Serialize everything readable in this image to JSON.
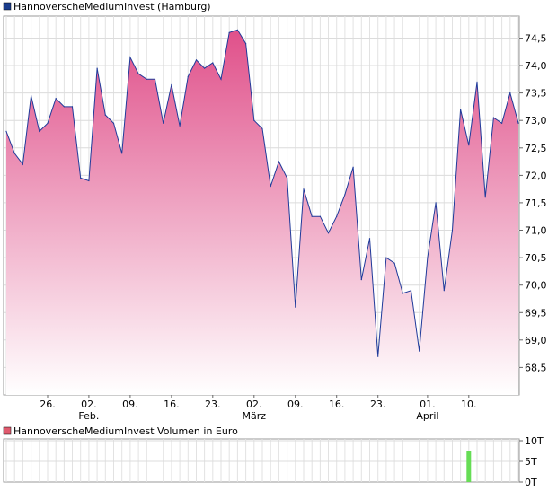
{
  "chart_data": [
    {
      "type": "area",
      "legend": "HannoverscheMediumInvest (Hamburg)",
      "legend_color": "#1a3c8c",
      "line_color": "#1f3a9a",
      "fill_top_color": "#e0508a",
      "fill_bottom_color": "#ffffff",
      "ylim": [
        68.0,
        74.9
      ],
      "y_ticks": [
        "68,5",
        "69,0",
        "69,5",
        "70,0",
        "70,5",
        "71,0",
        "71,5",
        "72,0",
        "72,5",
        "73,0",
        "73,5",
        "74,0",
        "74,5"
      ],
      "y_tick_values": [
        68.5,
        69.0,
        69.5,
        70.0,
        70.5,
        71.0,
        71.5,
        72.0,
        72.5,
        73.0,
        73.5,
        74.0,
        74.5
      ],
      "x_ticks": [
        {
          "day": "26.",
          "month": "",
          "index": 5
        },
        {
          "day": "02.",
          "month": "Feb.",
          "index": 10
        },
        {
          "day": "09.",
          "month": "",
          "index": 15
        },
        {
          "day": "16.",
          "month": "",
          "index": 20
        },
        {
          "day": "23.",
          "month": "",
          "index": 25
        },
        {
          "day": "02.",
          "month": "März",
          "index": 30
        },
        {
          "day": "09.",
          "month": "",
          "index": 35
        },
        {
          "day": "16.",
          "month": "",
          "index": 40
        },
        {
          "day": "23.",
          "month": "",
          "index": 45
        },
        {
          "day": "01.",
          "month": "April",
          "index": 51
        },
        {
          "day": "10.",
          "month": "",
          "index": 56
        }
      ],
      "grid": true,
      "values": [
        72.8,
        72.4,
        72.2,
        73.45,
        72.8,
        72.95,
        73.4,
        73.25,
        73.25,
        71.95,
        71.9,
        73.95,
        73.1,
        72.95,
        72.4,
        74.15,
        73.85,
        73.75,
        73.75,
        72.95,
        73.65,
        72.9,
        73.8,
        74.1,
        73.95,
        74.05,
        73.75,
        74.6,
        74.65,
        74.4,
        73.0,
        72.85,
        71.8,
        72.25,
        71.95,
        69.6,
        71.75,
        71.25,
        71.25,
        70.95,
        71.25,
        71.65,
        72.15,
        70.1,
        70.85,
        68.7,
        70.5,
        70.4,
        69.85,
        69.9,
        68.8,
        70.5,
        71.5,
        69.9,
        71.0,
        73.2,
        72.55,
        73.7,
        71.6,
        73.05,
        72.95,
        73.5,
        72.95
      ]
    },
    {
      "type": "bar",
      "legend": "HannoverscheMediumInvest Volumen in Euro",
      "legend_color": "#e05a6e",
      "bar_color": "#66dd55",
      "y_ticks": [
        "10T",
        "5T",
        "0T"
      ],
      "y_tick_values": [
        10000,
        5000,
        0
      ],
      "ylim": [
        0,
        10000
      ],
      "bars": [
        {
          "index": 56,
          "value": 7500
        }
      ]
    }
  ]
}
